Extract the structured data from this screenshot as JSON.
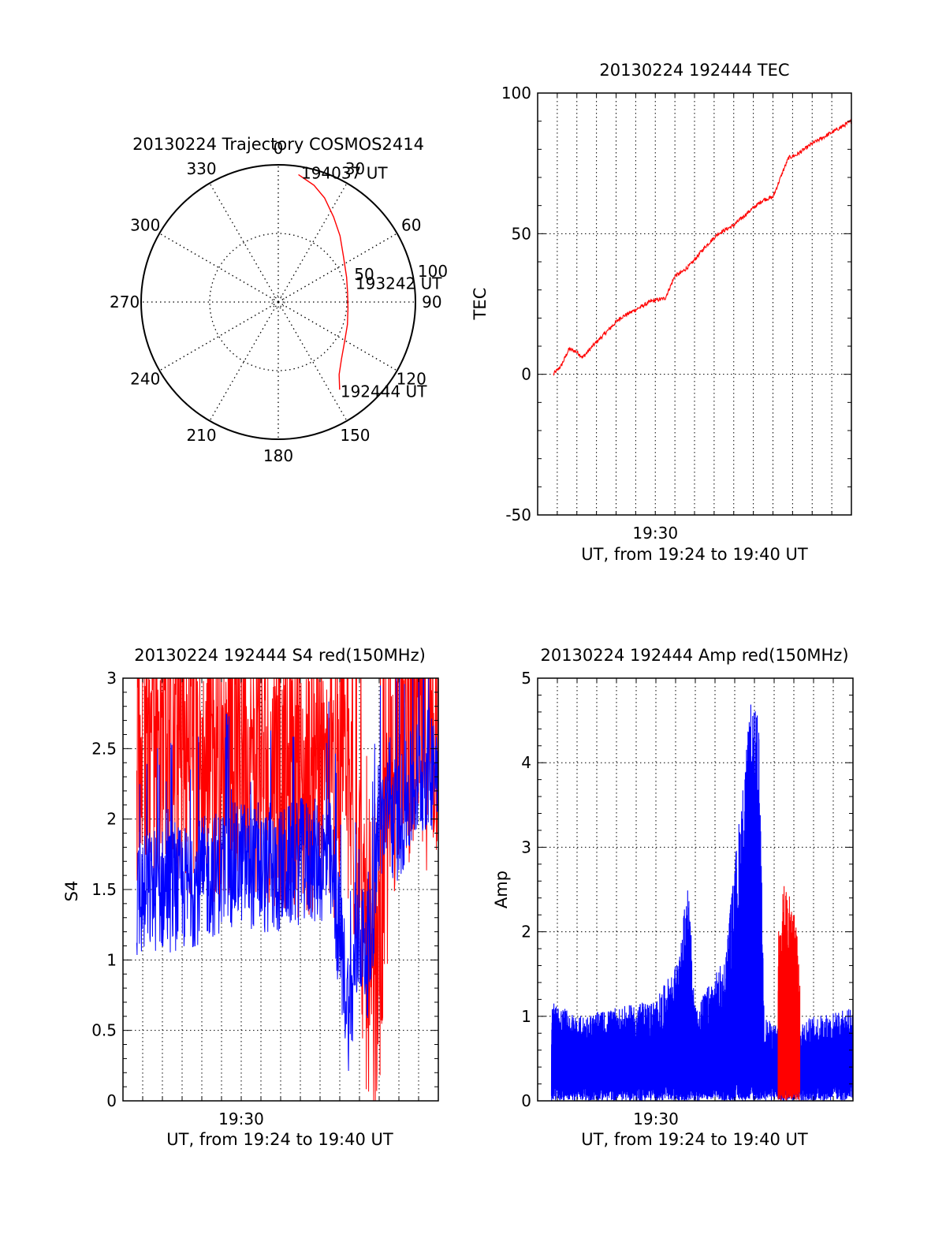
{
  "chart_data": [
    {
      "type": "polar",
      "title": "20130224 Trajectory COSMOS2414",
      "azimuth_ticks": [
        "0",
        "30",
        "60",
        "90",
        "120",
        "150",
        "180",
        "210",
        "240",
        "270",
        "300",
        "330"
      ],
      "radial_ticks": [
        "50",
        "100"
      ],
      "radial_range": [
        0,
        100
      ],
      "grid": true,
      "series": [
        {
          "color": "#ff0000",
          "azimuth": [
            9,
            17,
            24,
            33,
            43,
            55,
            70,
            82,
            95,
            108,
            120,
            132,
            140,
            145
          ],
          "distance": [
            94,
            89,
            83,
            74,
            66,
            58,
            53,
            51,
            51,
            53,
            56,
            62,
            69,
            78
          ]
        }
      ],
      "annotations": [
        {
          "text": "194037 UT",
          "azimuth": 10,
          "distance": 96
        },
        {
          "text": "193242 UT",
          "azimuth": 76,
          "distance": 58
        },
        {
          "text": "192444 UT",
          "azimuth": 145,
          "distance": 79
        }
      ]
    },
    {
      "type": "line",
      "title": "20130224 192444 TEC",
      "xlabel": "UT, from 19:24 to 19:40 UT",
      "ylabel": "TEC",
      "xlim": [
        0,
        16
      ],
      "ylim": [
        -50,
        100
      ],
      "x_tick_labels": [
        {
          "x": 6,
          "label": "19:30"
        }
      ],
      "y_ticks": [
        "-50",
        "0",
        "50",
        "100"
      ],
      "grid": true,
      "series": [
        {
          "color": "#ff0000",
          "x": [
            0.8,
            1.2,
            1.6,
            2.0,
            2.3,
            2.8,
            3.5,
            4.2,
            5.0,
            5.8,
            6.5,
            7.0,
            7.3,
            7.8,
            8.5,
            9.2,
            10.0,
            10.8,
            11.5,
            12.0,
            12.5,
            12.8,
            13.2,
            14.0,
            14.5,
            15.0,
            15.5,
            16.0
          ],
          "y": [
            0,
            3,
            9,
            8,
            6,
            10,
            15,
            20,
            23,
            26,
            27,
            35,
            36,
            39,
            45,
            50,
            53,
            58,
            62,
            63,
            72,
            77,
            78,
            82,
            84,
            86,
            88,
            90
          ]
        }
      ]
    },
    {
      "type": "line",
      "title": "20130224 192444 S4 red(150MHz)",
      "xlabel": "UT, from 19:24 to 19:40 UT",
      "ylabel": "S4",
      "xlim": [
        0,
        16
      ],
      "ylim": [
        0,
        3
      ],
      "x_tick_labels": [
        {
          "x": 6,
          "label": "19:30"
        }
      ],
      "y_ticks": [
        "0",
        "0.5",
        "1",
        "1.5",
        "2",
        "2.5",
        "3"
      ],
      "grid": true,
      "series": [
        {
          "color": "#ff0000",
          "x": [
            0.7,
            1.5,
            3.0,
            4.5,
            6.0,
            7.5,
            9.0,
            10.5,
            11.5,
            12.0,
            12.4,
            12.8,
            13.3,
            14.0,
            15.0,
            16.0
          ],
          "y": [
            2.3,
            2.4,
            2.3,
            2.2,
            2.3,
            2.2,
            2.1,
            2.1,
            2.0,
            1.6,
            0.6,
            0.3,
            1.5,
            2.6,
            2.4,
            2.5
          ]
        },
        {
          "color": "#0000ff",
          "x": [
            0.7,
            1.5,
            3.0,
            4.5,
            6.0,
            7.5,
            9.0,
            10.5,
            11.5,
            12.0,
            12.5,
            13.0,
            14.0,
            15.0,
            16.0
          ],
          "y": [
            1.4,
            1.5,
            1.5,
            1.6,
            1.7,
            1.6,
            1.7,
            1.7,
            0.6,
            1.2,
            1.0,
            2.0,
            2.0,
            2.3,
            2.4
          ]
        }
      ]
    },
    {
      "type": "line",
      "title": "20130224 192444 Amp red(150MHz)",
      "xlabel": "UT, from 19:24 to 19:40 UT",
      "ylabel": "Amp",
      "xlim": [
        0,
        16
      ],
      "ylim": [
        0,
        5
      ],
      "x_tick_labels": [
        {
          "x": 6,
          "label": "19:30"
        }
      ],
      "y_ticks": [
        "0",
        "1",
        "2",
        "3",
        "4",
        "5"
      ],
      "grid": true,
      "series": [
        {
          "color": "#0000ff",
          "x": [
            0.7,
            2.0,
            4.0,
            6.0,
            7.2,
            7.6,
            8.0,
            9.5,
            10.8,
            11.2,
            11.5,
            12.0,
            14.0,
            16.0
          ],
          "y": [
            1.2,
            1.0,
            1.1,
            1.2,
            1.7,
            2.7,
            1.1,
            1.7,
            4.7,
            4.6,
            1.0,
            0.9,
            1.0,
            1.1
          ]
        },
        {
          "color": "#ff0000",
          "x": [
            12.2,
            12.5,
            12.8,
            13.1,
            13.3
          ],
          "y": [
            2.0,
            2.6,
            2.4,
            2.2,
            1.5
          ]
        }
      ]
    }
  ]
}
